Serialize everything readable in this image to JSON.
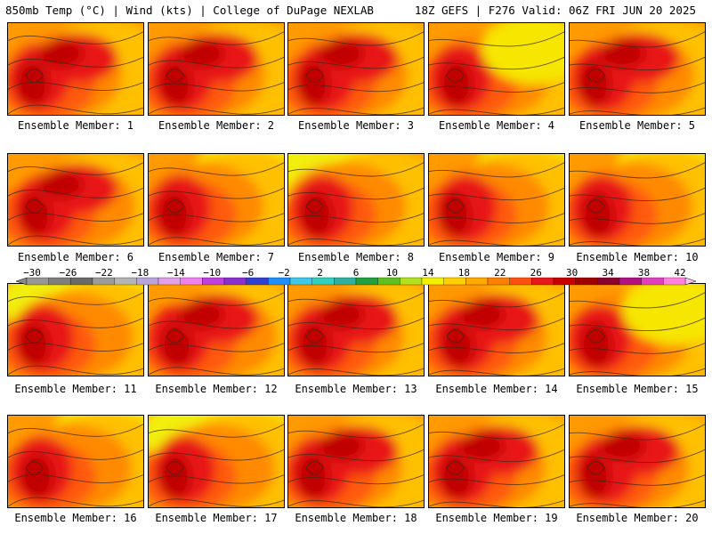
{
  "header": {
    "left_title": "850mb Temp (°C) | Wind (kts) | College of DuPage NEXLAB",
    "right_title": "18Z GEFS | F276 Valid: 06Z FRI JUN 20 2025"
  },
  "caption_prefix": "Ensemble Member:",
  "members": [
    {
      "id": "1",
      "style": "hot"
    },
    {
      "id": "2",
      "style": "hot"
    },
    {
      "id": "3",
      "style": "hot"
    },
    {
      "id": "4",
      "style": "warm"
    },
    {
      "id": "5",
      "style": "hot"
    },
    {
      "id": "6",
      "style": "hot"
    },
    {
      "id": "7",
      "style": "green-ne"
    },
    {
      "id": "8",
      "style": "green-nw"
    },
    {
      "id": "9",
      "style": "green-ne"
    },
    {
      "id": "10",
      "style": "green-ne"
    },
    {
      "id": "11",
      "style": "green-n"
    },
    {
      "id": "12",
      "style": "hot"
    },
    {
      "id": "13",
      "style": "hot"
    },
    {
      "id": "14",
      "style": "hot"
    },
    {
      "id": "15",
      "style": "warm"
    },
    {
      "id": "16",
      "style": "green-ne"
    },
    {
      "id": "17",
      "style": "green-n"
    },
    {
      "id": "18",
      "style": "hot"
    },
    {
      "id": "19",
      "style": "hot"
    },
    {
      "id": "20",
      "style": "hot"
    }
  ],
  "colorbar": {
    "labels": [
      "−30",
      "−26",
      "−22",
      "−18",
      "−14",
      "−10",
      "−6",
      "−2",
      "2",
      "6",
      "10",
      "14",
      "18",
      "22",
      "26",
      "30",
      "34",
      "38",
      "42"
    ],
    "colors": [
      "#969696",
      "#7f7f7f",
      "#6a6a6a",
      "#9b9b9b",
      "#b4b4b4",
      "#b9a4da",
      "#e0a0e8",
      "#f080f0",
      "#c040e0",
      "#8a30d0",
      "#3040d0",
      "#1e90ff",
      "#40c8e8",
      "#30d0c0",
      "#30b0a0",
      "#20a040",
      "#60c020",
      "#b0e020",
      "#f0f000",
      "#ffd000",
      "#ffa800",
      "#ff8000",
      "#ff5010",
      "#e81818",
      "#c80000",
      "#a00000",
      "#8a0030",
      "#b01080",
      "#e040c0",
      "#ff80e0"
    ]
  }
}
